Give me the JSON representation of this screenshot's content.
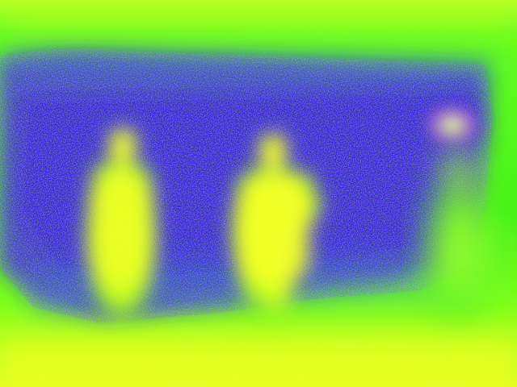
{
  "image": {
    "kind": "thermal-camera-frame",
    "subjects": 3,
    "palette": {
      "cold": "#3a1fd8",
      "cool": "#2a8fd6",
      "mid": "#3ef41a",
      "warm": "#c8ff1a",
      "hot": "#ffff22",
      "hotspot": "#d8ff8a"
    }
  }
}
